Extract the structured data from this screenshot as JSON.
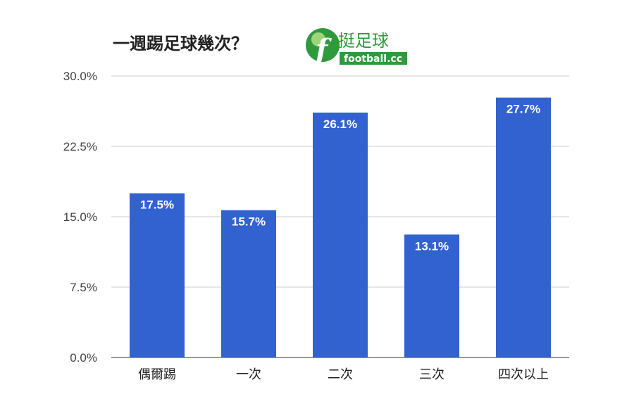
{
  "chart_data": {
    "type": "bar",
    "title": "一週踢足球幾次？",
    "categories": [
      "偶爾踢",
      "一次",
      "二次",
      "三次",
      "四次以上"
    ],
    "values": [
      17.5,
      15.7,
      26.1,
      13.1,
      27.7
    ],
    "data_labels": [
      "17.5%",
      "15.7%",
      "26.1%",
      "13.1%",
      "27.7%"
    ],
    "yticks": [
      "0.0%",
      "7.5%",
      "15.0%",
      "22.5%",
      "30.0%"
    ],
    "ytick_values": [
      0,
      7.5,
      15,
      22.5,
      30
    ],
    "ylim": [
      0,
      30
    ],
    "xlabel": "",
    "ylabel": "",
    "grid": true,
    "bar_color": "#3162cf"
  },
  "logo": {
    "text_cn": "挺足球",
    "text_en": "football.cc",
    "color": "#2e9a3c"
  }
}
